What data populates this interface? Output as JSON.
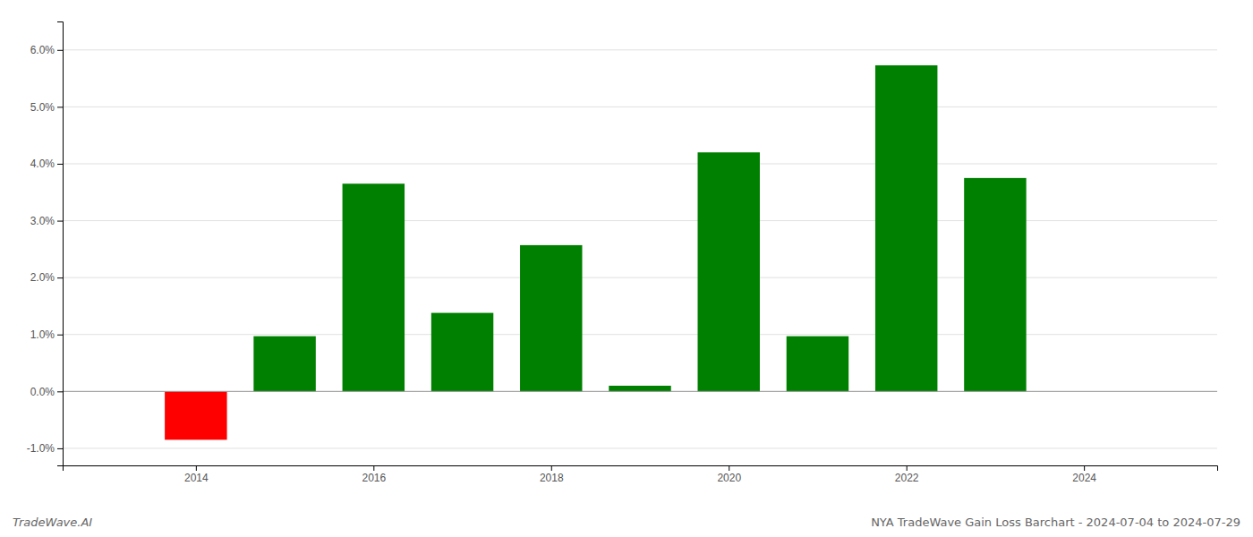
{
  "chart_data": {
    "type": "bar",
    "x": [
      2014,
      2015,
      2016,
      2017,
      2018,
      2019,
      2020,
      2021,
      2022,
      2023
    ],
    "values": [
      -0.0085,
      0.0097,
      0.0365,
      0.0138,
      0.0257,
      0.001,
      0.042,
      0.0097,
      0.0573,
      0.0375
    ],
    "colors": [
      "#ff0000",
      "#008000",
      "#008000",
      "#008000",
      "#008000",
      "#008000",
      "#008000",
      "#008000",
      "#008000",
      "#008000"
    ],
    "xlim": [
      2012.5,
      2025.5
    ],
    "xticks": [
      2014,
      2016,
      2018,
      2020,
      2022,
      2024
    ],
    "ylim": [
      -0.013,
      0.065
    ],
    "yticks": [
      {
        "value": -0.01,
        "label": "-1.0%"
      },
      {
        "value": 0.0,
        "label": "0.0%"
      },
      {
        "value": 0.01,
        "label": "1.0%"
      },
      {
        "value": 0.02,
        "label": "2.0%"
      },
      {
        "value": 0.03,
        "label": "3.0%"
      },
      {
        "value": 0.04,
        "label": "4.0%"
      },
      {
        "value": 0.05,
        "label": "5.0%"
      },
      {
        "value": 0.06,
        "label": "6.0%"
      }
    ],
    "grid": true,
    "annotations": [
      "TradeWave.AI",
      "NYA TradeWave Gain Loss Barchart - 2024-07-04 to 2024-07-29"
    ]
  }
}
